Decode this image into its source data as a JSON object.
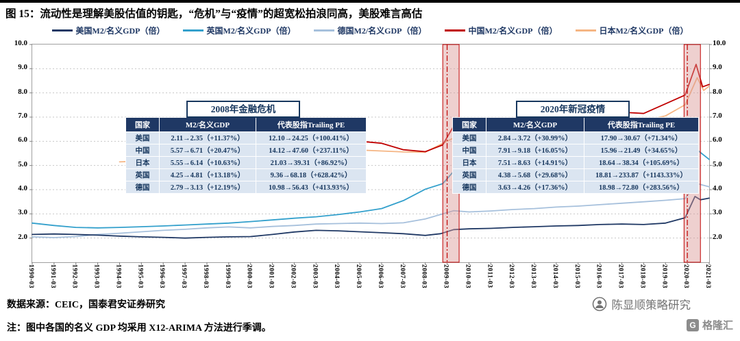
{
  "title": "图 15：流动性是理解美股估值的钥匙，“危机”与“疫情”的超宽松拍浪同高，美股难言高估",
  "chart_data": {
    "type": "line",
    "title": "",
    "xlabel": "",
    "ylabel": "M2/名义GDP（倍）",
    "ylim": [
      1.0,
      10.0
    ],
    "yticks": [
      10.0,
      9.0,
      8.0,
      7.0,
      6.0,
      5.0,
      4.0,
      3.0,
      2.0
    ],
    "grid": true,
    "legend_position": "top",
    "x_labels": [
      "1990-03",
      "1991-03",
      "1992-03",
      "1993-03",
      "1994-03",
      "1995-03",
      "1996-03",
      "1997-03",
      "1998-03",
      "1999-03",
      "2000-03",
      "2001-03",
      "2002-03",
      "2003-03",
      "2004-03",
      "2005-03",
      "2006-03",
      "2007-03",
      "2008-03",
      "2009-03",
      "2010-03",
      "2011-03",
      "2012-03",
      "2013-03",
      "2014-03",
      "2015-03",
      "2016-03",
      "2017-03",
      "2018-03",
      "2019-03",
      "2020-03",
      "2021-03"
    ],
    "series": [
      {
        "name": "美国M2/名义GDP（倍）",
        "color": "#1f3864",
        "z": 3,
        "points": [
          [
            0,
            2.15
          ],
          [
            1,
            2.17
          ],
          [
            2,
            2.15
          ],
          [
            3,
            2.12
          ],
          [
            4,
            2.08
          ],
          [
            5,
            2.05
          ],
          [
            6,
            2.03
          ],
          [
            7,
            2.0
          ],
          [
            8,
            2.03
          ],
          [
            9,
            2.05
          ],
          [
            10,
            2.06
          ],
          [
            11,
            2.15
          ],
          [
            12,
            2.25
          ],
          [
            13,
            2.32
          ],
          [
            14,
            2.3
          ],
          [
            15,
            2.26
          ],
          [
            16,
            2.22
          ],
          [
            17,
            2.18
          ],
          [
            18,
            2.11
          ],
          [
            18.7,
            2.18
          ],
          [
            19.3,
            2.35
          ],
          [
            20,
            2.38
          ],
          [
            21,
            2.4
          ],
          [
            22,
            2.44
          ],
          [
            23,
            2.47
          ],
          [
            24,
            2.5
          ],
          [
            25,
            2.52
          ],
          [
            26,
            2.56
          ],
          [
            27,
            2.58
          ],
          [
            28,
            2.56
          ],
          [
            29,
            2.62
          ],
          [
            29.9,
            2.84
          ],
          [
            30.35,
            3.72
          ],
          [
            30.6,
            3.58
          ],
          [
            31,
            3.65
          ]
        ]
      },
      {
        "name": "英国M2/名义GDP（倍）",
        "color": "#33a0cc",
        "z": 2,
        "points": [
          [
            0,
            2.62
          ],
          [
            1,
            2.52
          ],
          [
            2,
            2.44
          ],
          [
            3,
            2.42
          ],
          [
            4,
            2.44
          ],
          [
            5,
            2.47
          ],
          [
            6,
            2.5
          ],
          [
            7,
            2.54
          ],
          [
            8,
            2.58
          ],
          [
            9,
            2.62
          ],
          [
            10,
            2.68
          ],
          [
            11,
            2.75
          ],
          [
            12,
            2.82
          ],
          [
            13,
            2.88
          ],
          [
            14,
            2.97
          ],
          [
            15,
            3.08
          ],
          [
            16,
            3.22
          ],
          [
            17,
            3.55
          ],
          [
            18,
            4.02
          ],
          [
            18.8,
            4.25
          ],
          [
            19.35,
            4.81
          ],
          [
            20,
            4.7
          ],
          [
            21,
            4.56
          ],
          [
            22,
            4.44
          ],
          [
            23,
            4.3
          ],
          [
            24,
            4.2
          ],
          [
            25,
            4.14
          ],
          [
            26,
            4.16
          ],
          [
            27,
            4.2
          ],
          [
            28,
            4.26
          ],
          [
            29,
            4.32
          ],
          [
            29.9,
            4.38
          ],
          [
            30.4,
            5.68
          ],
          [
            31,
            5.25
          ]
        ]
      },
      {
        "name": "德国M2/名义GDP（倍）",
        "color": "#a6c0dc",
        "z": 1,
        "points": [
          [
            0,
            2.05
          ],
          [
            1,
            2.02
          ],
          [
            2,
            2.06
          ],
          [
            3,
            2.15
          ],
          [
            4,
            2.2
          ],
          [
            5,
            2.26
          ],
          [
            6,
            2.32
          ],
          [
            7,
            2.36
          ],
          [
            8,
            2.42
          ],
          [
            9,
            2.46
          ],
          [
            10,
            2.42
          ],
          [
            11,
            2.48
          ],
          [
            12,
            2.52
          ],
          [
            13,
            2.58
          ],
          [
            14,
            2.6
          ],
          [
            15,
            2.62
          ],
          [
            16,
            2.6
          ],
          [
            17,
            2.63
          ],
          [
            18,
            2.79
          ],
          [
            19.3,
            3.13
          ],
          [
            20,
            3.08
          ],
          [
            21,
            3.12
          ],
          [
            22,
            3.18
          ],
          [
            23,
            3.22
          ],
          [
            24,
            3.28
          ],
          [
            25,
            3.32
          ],
          [
            26,
            3.38
          ],
          [
            27,
            3.44
          ],
          [
            28,
            3.5
          ],
          [
            29,
            3.56
          ],
          [
            29.9,
            3.63
          ],
          [
            30.4,
            4.26
          ],
          [
            31,
            4.12
          ]
        ]
      },
      {
        "name": "中国M2/名义GDP（倍）",
        "color": "#c00000",
        "z": 4,
        "points": [
          [
            6,
            5.35
          ],
          [
            7,
            5.65
          ],
          [
            8,
            5.95
          ],
          [
            9,
            6.1
          ],
          [
            10,
            6.05
          ],
          [
            11,
            6.15
          ],
          [
            12,
            6.25
          ],
          [
            13,
            6.3
          ],
          [
            14,
            5.95
          ],
          [
            15,
            6.0
          ],
          [
            16,
            5.92
          ],
          [
            17,
            5.65
          ],
          [
            18,
            5.57
          ],
          [
            18.8,
            5.85
          ],
          [
            19.35,
            6.71
          ],
          [
            20,
            6.65
          ],
          [
            21,
            6.45
          ],
          [
            22,
            6.55
          ],
          [
            23,
            6.6
          ],
          [
            24,
            6.65
          ],
          [
            25,
            6.85
          ],
          [
            26,
            7.1
          ],
          [
            27,
            7.2
          ],
          [
            28,
            7.15
          ],
          [
            29,
            7.55
          ],
          [
            29.9,
            7.91
          ],
          [
            30.4,
            9.18
          ],
          [
            30.7,
            8.25
          ],
          [
            31,
            8.35
          ]
        ]
      },
      {
        "name": "日本M2/名义GDP（倍）",
        "color": "#f5b583",
        "z": 0,
        "points": [
          [
            4,
            5.15
          ],
          [
            5,
            5.18
          ],
          [
            6,
            5.22
          ],
          [
            7,
            5.28
          ],
          [
            8,
            5.38
          ],
          [
            9,
            5.44
          ],
          [
            10,
            5.48
          ],
          [
            11,
            5.52
          ],
          [
            12,
            5.58
          ],
          [
            13,
            5.62
          ],
          [
            14,
            5.68
          ],
          [
            15,
            5.64
          ],
          [
            16,
            5.6
          ],
          [
            17,
            5.56
          ],
          [
            18,
            5.55
          ],
          [
            19.3,
            6.14
          ],
          [
            20,
            6.18
          ],
          [
            21,
            6.28
          ],
          [
            22,
            6.34
          ],
          [
            23,
            6.38
          ],
          [
            24,
            6.44
          ],
          [
            25,
            6.5
          ],
          [
            26,
            6.58
          ],
          [
            27,
            6.68
          ],
          [
            28,
            6.85
          ],
          [
            29,
            7.05
          ],
          [
            29.9,
            7.51
          ],
          [
            30.45,
            8.63
          ],
          [
            30.75,
            8.1
          ],
          [
            31,
            8.28
          ]
        ]
      }
    ],
    "highlight_bands": [
      {
        "from": 18.8,
        "to": 19.55
      },
      {
        "from": 29.85,
        "to": 30.6
      }
    ],
    "band_fill": "#d99694",
    "vlines": [
      19.0,
      30.0
    ],
    "vline_color": "#c00000"
  },
  "annotations": [
    {
      "title": "2008年金融危机",
      "headers": [
        "国家",
        "M2/名义GDP",
        "代表股指Trailing PE"
      ],
      "rows": [
        [
          "美国",
          "2.11→2.35（+11.37%）",
          "12.10→24.25（+100.41%）"
        ],
        [
          "中国",
          "5.57→6.71（+20.47%）",
          "14.12→47.60（+237.11%）"
        ],
        [
          "日本",
          "5.55→6.14（+10.63%）",
          "21.03→39.31（+86.92%）"
        ],
        [
          "英国",
          "4.25→4.81（+13.18%）",
          "9.36→68.18（+628.42%）"
        ],
        [
          "德国",
          "2.79→3.13（+12.19%）",
          "10.98→56.43（+413.93%）"
        ]
      ]
    },
    {
      "title": "2020年新冠疫情",
      "headers": [
        "国家",
        "M2/名义GDP",
        "代表股指Trailing PE"
      ],
      "rows": [
        [
          "美国",
          "2.84→3.72（+30.99%）",
          "17.90→30.67（+71.34%）"
        ],
        [
          "中国",
          "7.91→9.18（+16.05%）",
          "15.96→21.49（+34.65%）"
        ],
        [
          "日本",
          "7.51→8.63（+14.91%）",
          "18.64→38.34（+105.69%）"
        ],
        [
          "英国",
          "4.38→5.68（+29.68%）",
          "18.81→233.87（+1143.33%）"
        ],
        [
          "德国",
          "3.63→4.26（+17.36%）",
          "18.98→72.80（+283.56%）"
        ]
      ]
    }
  ],
  "footer": {
    "source": "数据来源：CEIC，国泰君安证券研究",
    "note": "注：图中各国的名义 GDP 均采用 X12-ARIMA 方法进行季调。",
    "brand": "陈显顺策略研究",
    "logo_text": "格隆汇",
    "logo_letter": "G"
  }
}
